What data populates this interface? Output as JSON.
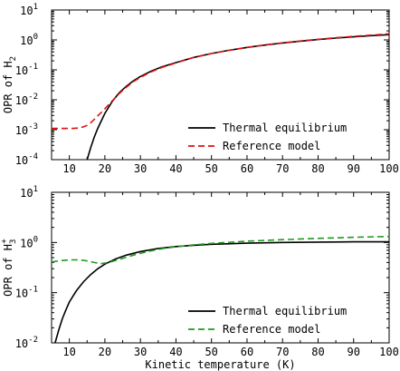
{
  "chart_data": [
    {
      "type": "line",
      "ylabel": "OPR of H",
      "ylabel_subscript": "2",
      "xlabel": "",
      "xlim": [
        5,
        100
      ],
      "ylim": [
        0.0001,
        10
      ],
      "yscale": "log",
      "grid": false,
      "legend": "bottom-right",
      "x_ticks": [
        {
          "value": 10,
          "label": "10"
        },
        {
          "value": 20,
          "label": "20"
        },
        {
          "value": 30,
          "label": "30"
        },
        {
          "value": 40,
          "label": "40"
        },
        {
          "value": 50,
          "label": "50"
        },
        {
          "value": 60,
          "label": "60"
        },
        {
          "value": 70,
          "label": "70"
        },
        {
          "value": 80,
          "label": "80"
        },
        {
          "value": 90,
          "label": "90"
        },
        {
          "value": 100,
          "label": "100"
        }
      ],
      "y_ticks": [
        {
          "value": 0.0001,
          "base": "10",
          "exp": "-4"
        },
        {
          "value": 0.001,
          "base": "10",
          "exp": "-3"
        },
        {
          "value": 0.01,
          "base": "10",
          "exp": "-2"
        },
        {
          "value": 0.1,
          "base": "10",
          "exp": "-1"
        },
        {
          "value": 1,
          "base": "10",
          "exp": "0"
        },
        {
          "value": 10,
          "base": "10",
          "exp": "1"
        }
      ],
      "series": [
        {
          "name": "Thermal equilibrium",
          "color": "#000000",
          "dash": "solid",
          "x": [
            15,
            16,
            17,
            18,
            19,
            20,
            22,
            24,
            26,
            28,
            30,
            33,
            36,
            40,
            45,
            50,
            55,
            60,
            65,
            70,
            75,
            80,
            85,
            90,
            95,
            100
          ],
          "y": [
            0.0001,
            0.00025,
            0.00056,
            0.0011,
            0.002,
            0.0035,
            0.0085,
            0.017,
            0.028,
            0.043,
            0.06,
            0.09,
            0.125,
            0.175,
            0.26,
            0.35,
            0.45,
            0.56,
            0.67,
            0.79,
            0.91,
            1.03,
            1.15,
            1.27,
            1.39,
            1.5
          ]
        },
        {
          "name": "Reference model",
          "color": "#e01010",
          "dash": "dashed",
          "x": [
            5,
            7,
            9,
            11,
            13,
            14,
            15,
            16,
            17,
            18,
            19,
            20,
            22,
            24,
            26,
            28,
            30,
            33,
            36,
            40,
            45,
            50,
            55,
            60,
            65,
            70,
            75,
            80,
            85,
            90,
            95,
            100
          ],
          "y": [
            0.0011,
            0.0011,
            0.0011,
            0.0011,
            0.00115,
            0.00125,
            0.0014,
            0.0017,
            0.0022,
            0.0029,
            0.0038,
            0.005,
            0.009,
            0.016,
            0.026,
            0.04,
            0.056,
            0.085,
            0.12,
            0.17,
            0.26,
            0.35,
            0.45,
            0.56,
            0.68,
            0.8,
            0.92,
            1.05,
            1.18,
            1.31,
            1.45,
            1.6
          ]
        }
      ]
    },
    {
      "type": "line",
      "ylabel": "OPR of H",
      "ylabel_subscript": "3",
      "ylabel_superscript": "+",
      "xlabel": "Kinetic temperature (K)",
      "xlim": [
        5,
        100
      ],
      "ylim": [
        0.01,
        10
      ],
      "yscale": "log",
      "grid": false,
      "legend": "bottom-right",
      "x_ticks": [
        {
          "value": 10,
          "label": "10"
        },
        {
          "value": 20,
          "label": "20"
        },
        {
          "value": 30,
          "label": "30"
        },
        {
          "value": 40,
          "label": "40"
        },
        {
          "value": 50,
          "label": "50"
        },
        {
          "value": 60,
          "label": "60"
        },
        {
          "value": 70,
          "label": "70"
        },
        {
          "value": 80,
          "label": "80"
        },
        {
          "value": 90,
          "label": "90"
        },
        {
          "value": 100,
          "label": "100"
        }
      ],
      "y_ticks": [
        {
          "value": 0.01,
          "base": "10",
          "exp": "-2"
        },
        {
          "value": 0.1,
          "base": "10",
          "exp": "-1"
        },
        {
          "value": 1,
          "base": "10",
          "exp": "0"
        },
        {
          "value": 10,
          "base": "10",
          "exp": "1"
        }
      ],
      "series": [
        {
          "name": "Thermal equilibrium",
          "color": "#000000",
          "dash": "solid",
          "x": [
            6,
            7,
            8,
            9,
            10,
            11,
            12,
            14,
            16,
            18,
            20,
            23,
            26,
            30,
            35,
            40,
            45,
            50,
            60,
            70,
            80,
            90,
            100
          ],
          "y": [
            0.01,
            0.018,
            0.03,
            0.045,
            0.065,
            0.085,
            0.11,
            0.165,
            0.23,
            0.3,
            0.37,
            0.47,
            0.56,
            0.66,
            0.76,
            0.83,
            0.88,
            0.92,
            0.97,
            1.0,
            1.02,
            1.03,
            1.03
          ]
        },
        {
          "name": "Reference model",
          "color": "#1f9a1f",
          "dash": "dashed",
          "x": [
            5,
            7,
            10,
            13,
            15,
            17,
            19,
            21,
            24,
            28,
            32,
            36,
            40,
            45,
            50,
            60,
            70,
            80,
            90,
            100
          ],
          "y": [
            0.41,
            0.43,
            0.45,
            0.45,
            0.43,
            0.4,
            0.38,
            0.4,
            0.46,
            0.56,
            0.66,
            0.75,
            0.82,
            0.9,
            0.96,
            1.06,
            1.14,
            1.21,
            1.27,
            1.32
          ]
        }
      ]
    }
  ]
}
